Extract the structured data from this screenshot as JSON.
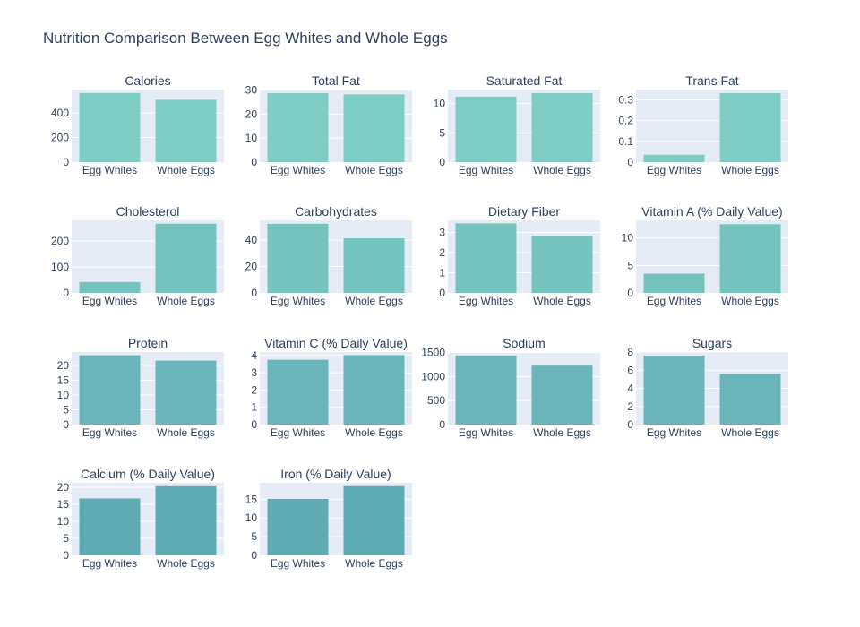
{
  "title": "Nutrition Comparison Between Egg Whites and Whole Eggs",
  "colors": {
    "plot_background": "#e5ecf6",
    "grid": "#ffffff",
    "text": "#2a3f5f",
    "bar_shades": [
      "#7ecdc4",
      "#75c3bf",
      "#69b5b9",
      "#5fabb4"
    ]
  },
  "chart_data": [
    {
      "type": "bar",
      "title": "Calories",
      "categories": [
        "Egg Whites",
        "Whole Eggs"
      ],
      "values": [
        562,
        507
      ],
      "ylim": [
        0,
        590
      ],
      "yticks": [
        0,
        200,
        400
      ],
      "ytick_labels": [
        "0",
        "200",
        "400"
      ]
    },
    {
      "type": "bar",
      "title": "Total Fat",
      "categories": [
        "Egg Whites",
        "Whole Eggs"
      ],
      "values": [
        28.7,
        28.2
      ],
      "ylim": [
        0,
        30.2
      ],
      "yticks": [
        0,
        10,
        20,
        30
      ],
      "ytick_labels": [
        "0",
        "10",
        "20",
        "30"
      ]
    },
    {
      "type": "bar",
      "title": "Saturated Fat",
      "categories": [
        "Egg Whites",
        "Whole Eggs"
      ],
      "values": [
        11.2,
        11.8
      ],
      "ylim": [
        0,
        12.4
      ],
      "yticks": [
        0,
        5,
        10
      ],
      "ytick_labels": [
        "0",
        "5",
        "10"
      ]
    },
    {
      "type": "bar",
      "title": "Trans Fat",
      "categories": [
        "Egg Whites",
        "Whole Eggs"
      ],
      "values": [
        0.036,
        0.333
      ],
      "ylim": [
        0,
        0.35
      ],
      "yticks": [
        0,
        0.1,
        0.2,
        0.3
      ],
      "ytick_labels": [
        "0",
        "0.1",
        "0.2",
        "0.3"
      ]
    },
    {
      "type": "bar",
      "title": "Cholesterol",
      "categories": [
        "Egg Whites",
        "Whole Eggs"
      ],
      "values": [
        42,
        267
      ],
      "ylim": [
        0,
        280
      ],
      "yticks": [
        0,
        100,
        200
      ],
      "ytick_labels": [
        "0",
        "100",
        "200"
      ]
    },
    {
      "type": "bar",
      "title": "Carbohydrates",
      "categories": [
        "Egg Whites",
        "Whole Eggs"
      ],
      "values": [
        52.4,
        41.4
      ],
      "ylim": [
        0,
        55
      ],
      "yticks": [
        0,
        20,
        40
      ],
      "ytick_labels": [
        "0",
        "20",
        "40"
      ]
    },
    {
      "type": "bar",
      "title": "Dietary Fiber",
      "categories": [
        "Egg Whites",
        "Whole Eggs"
      ],
      "values": [
        3.45,
        2.84
      ],
      "ylim": [
        0,
        3.6
      ],
      "yticks": [
        0,
        1,
        2,
        3
      ],
      "ytick_labels": [
        "0",
        "1",
        "2",
        "3"
      ]
    },
    {
      "type": "bar",
      "title": "Vitamin A (% Daily Value)",
      "categories": [
        "Egg Whites",
        "Whole Eggs"
      ],
      "values": [
        3.5,
        12.5
      ],
      "ylim": [
        0,
        13.2
      ],
      "yticks": [
        0,
        5,
        10
      ],
      "ytick_labels": [
        "0",
        "5",
        "10"
      ]
    },
    {
      "type": "bar",
      "title": "Protein",
      "categories": [
        "Egg Whites",
        "Whole Eggs"
      ],
      "values": [
        23.4,
        21.6
      ],
      "ylim": [
        0,
        24.5
      ],
      "yticks": [
        0,
        5,
        10,
        15,
        20
      ],
      "ytick_labels": [
        "0",
        "5",
        "10",
        "15",
        "20"
      ]
    },
    {
      "type": "bar",
      "title": "Vitamin C (% Daily Value)",
      "categories": [
        "Egg Whites",
        "Whole Eggs"
      ],
      "values": [
        3.75,
        4.02
      ],
      "ylim": [
        0,
        4.2
      ],
      "yticks": [
        0,
        1,
        2,
        3,
        4
      ],
      "ytick_labels": [
        "0",
        "1",
        "2",
        "3",
        "4"
      ]
    },
    {
      "type": "bar",
      "title": "Sodium",
      "categories": [
        "Egg Whites",
        "Whole Eggs"
      ],
      "values": [
        1438,
        1228
      ],
      "ylim": [
        0,
        1510
      ],
      "yticks": [
        0,
        500,
        1000,
        1500
      ],
      "ytick_labels": [
        "0",
        "500",
        "1000",
        "1500"
      ]
    },
    {
      "type": "bar",
      "title": "Sugars",
      "categories": [
        "Egg Whites",
        "Whole Eggs"
      ],
      "values": [
        7.6,
        5.6
      ],
      "ylim": [
        0,
        8
      ],
      "yticks": [
        0,
        2,
        4,
        6,
        8
      ],
      "ytick_labels": [
        "0",
        "2",
        "4",
        "6",
        "8"
      ]
    },
    {
      "type": "bar",
      "title": "Calcium (% Daily Value)",
      "categories": [
        "Egg Whites",
        "Whole Eggs"
      ],
      "values": [
        16.7,
        20.3
      ],
      "ylim": [
        0,
        21.3
      ],
      "yticks": [
        0,
        5,
        10,
        15,
        20
      ],
      "ytick_labels": [
        "0",
        "5",
        "10",
        "15",
        "20"
      ]
    },
    {
      "type": "bar",
      "title": "Iron (% Daily Value)",
      "categories": [
        "Egg Whites",
        "Whole Eggs"
      ],
      "values": [
        15.1,
        18.5
      ],
      "ylim": [
        0,
        19.4
      ],
      "yticks": [
        0,
        5,
        10,
        15
      ],
      "ytick_labels": [
        "0",
        "5",
        "10",
        "15"
      ]
    }
  ]
}
